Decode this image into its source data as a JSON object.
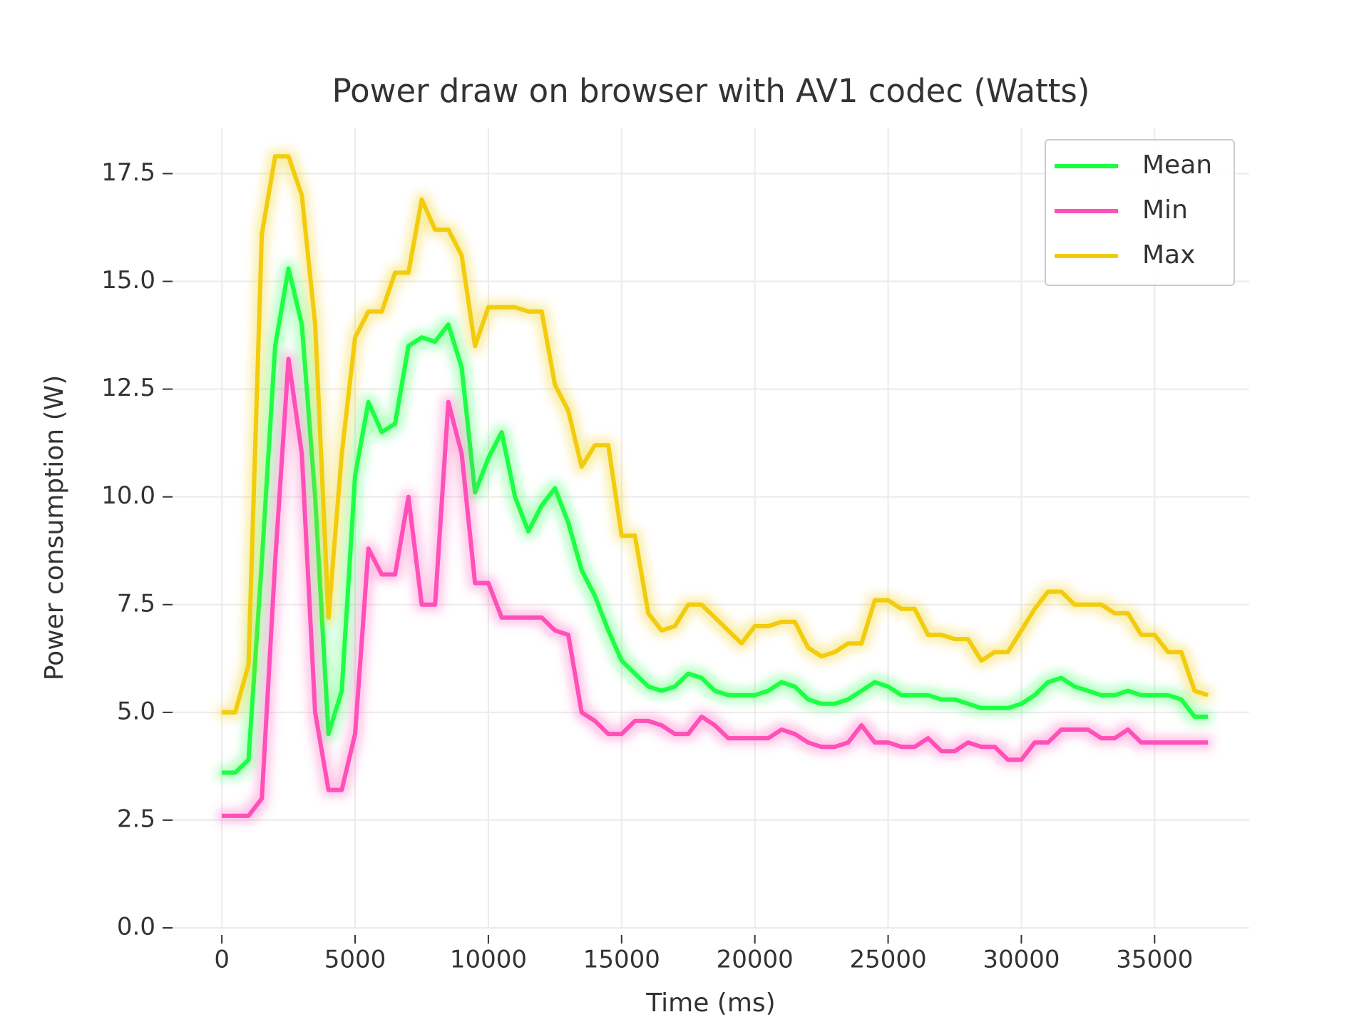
{
  "chart_data": {
    "type": "line",
    "title": "Power draw on browser with AV1 codec (Watts)",
    "x_label": "Time (ms)",
    "y_label": "Power consumption (W)",
    "x": [
      0,
      500,
      1000,
      1500,
      2000,
      2500,
      3000,
      3500,
      4000,
      4500,
      5000,
      5500,
      6000,
      6500,
      7000,
      7500,
      8000,
      8500,
      9000,
      9500,
      10000,
      10500,
      11000,
      11500,
      12000,
      12500,
      13000,
      13500,
      14000,
      14500,
      15000,
      15500,
      16000,
      16500,
      17000,
      17500,
      18000,
      18500,
      19000,
      19500,
      20000,
      20500,
      21000,
      21500,
      22000,
      22500,
      23000,
      23500,
      24000,
      24500,
      25000,
      25500,
      26000,
      26500,
      27000,
      27500,
      28000,
      28500,
      29000,
      29500,
      30000,
      30500,
      31000,
      31500,
      32000,
      32500,
      33000,
      33500,
      34000,
      34500,
      35000,
      35500,
      36000,
      36500,
      37000
    ],
    "series": [
      {
        "name": "Mean",
        "color": "#1aff44",
        "values": [
          3.6,
          3.6,
          3.9,
          8.5,
          13.5,
          15.3,
          14.0,
          10.0,
          4.5,
          5.5,
          10.5,
          12.2,
          11.5,
          11.7,
          13.5,
          13.7,
          13.6,
          14.0,
          13.0,
          10.1,
          10.9,
          11.5,
          10.0,
          9.2,
          9.8,
          10.2,
          9.4,
          8.3,
          7.7,
          6.9,
          6.2,
          5.9,
          5.6,
          5.5,
          5.6,
          5.9,
          5.8,
          5.5,
          5.4,
          5.4,
          5.4,
          5.5,
          5.7,
          5.6,
          5.3,
          5.2,
          5.2,
          5.3,
          5.5,
          5.7,
          5.6,
          5.4,
          5.4,
          5.4,
          5.3,
          5.3,
          5.2,
          5.1,
          5.1,
          5.1,
          5.2,
          5.4,
          5.7,
          5.8,
          5.6,
          5.5,
          5.4,
          5.4,
          5.5,
          5.4,
          5.4,
          5.4,
          5.3,
          4.9,
          4.9
        ]
      },
      {
        "name": "Min",
        "color": "#ff4fb8",
        "values": [
          2.6,
          2.6,
          2.6,
          3.0,
          8.5,
          13.2,
          11.0,
          5.0,
          3.2,
          3.2,
          4.5,
          8.8,
          8.2,
          8.2,
          10.0,
          7.5,
          7.5,
          12.2,
          11.0,
          8.0,
          8.0,
          7.2,
          7.2,
          7.2,
          7.2,
          6.9,
          6.8,
          5.0,
          4.8,
          4.5,
          4.5,
          4.8,
          4.8,
          4.7,
          4.5,
          4.5,
          4.9,
          4.7,
          4.4,
          4.4,
          4.4,
          4.4,
          4.6,
          4.5,
          4.3,
          4.2,
          4.2,
          4.3,
          4.7,
          4.3,
          4.3,
          4.2,
          4.2,
          4.4,
          4.1,
          4.1,
          4.3,
          4.2,
          4.2,
          3.9,
          3.9,
          4.3,
          4.3,
          4.6,
          4.6,
          4.6,
          4.4,
          4.4,
          4.6,
          4.3,
          4.3,
          4.3,
          4.3,
          4.3,
          4.3
        ]
      },
      {
        "name": "Max",
        "color": "#f2cc0c",
        "values": [
          5.0,
          5.0,
          6.1,
          16.1,
          17.9,
          17.9,
          17.0,
          14.0,
          7.2,
          11.0,
          13.7,
          14.3,
          14.3,
          15.2,
          15.2,
          16.9,
          16.2,
          16.2,
          15.6,
          13.5,
          14.4,
          14.4,
          14.4,
          14.3,
          14.3,
          12.6,
          12.0,
          10.7,
          11.2,
          11.2,
          9.1,
          9.1,
          7.3,
          6.9,
          7.0,
          7.5,
          7.5,
          7.2,
          6.9,
          6.6,
          7.0,
          7.0,
          7.1,
          7.1,
          6.5,
          6.3,
          6.4,
          6.6,
          6.6,
          7.6,
          7.6,
          7.4,
          7.4,
          6.8,
          6.8,
          6.7,
          6.7,
          6.2,
          6.4,
          6.4,
          6.9,
          7.4,
          7.8,
          7.8,
          7.5,
          7.5,
          7.5,
          7.3,
          7.3,
          6.8,
          6.8,
          6.4,
          6.4,
          5.5,
          5.4
        ]
      }
    ],
    "xlim": [
      -1850,
      38550
    ],
    "ylim": [
      0,
      18.55
    ],
    "xticks": [
      0,
      5000,
      10000,
      15000,
      20000,
      25000,
      30000,
      35000
    ],
    "yticks": [
      {
        "value": 0,
        "label": "0.0"
      },
      2.5,
      {
        "value": 5,
        "label": "5.0"
      },
      7.5,
      {
        "value": 10,
        "label": "10.0"
      },
      12.5,
      {
        "value": 15,
        "label": "15.0"
      },
      17.5
    ],
    "grid": true,
    "legend": "upper right"
  }
}
